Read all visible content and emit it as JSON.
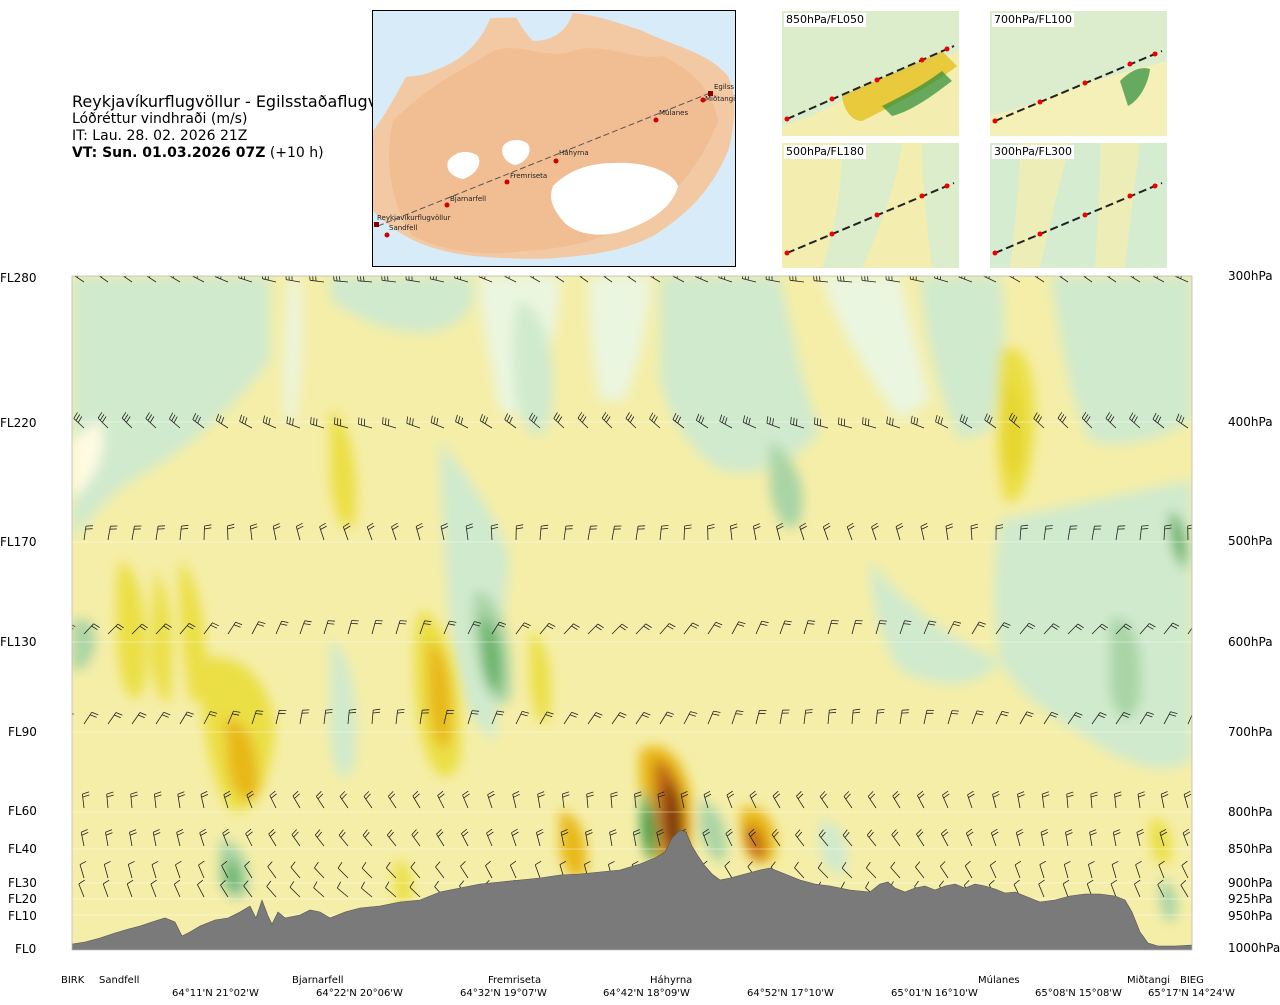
{
  "header": {
    "route": "Reykjavíkurflugvöllur - Egilsstaðaflugvöllur",
    "parameter": "Lóðréttur vindhraði (m/s)",
    "issue_time": "IT: Lau. 28. 02. 2026 21Z",
    "valid_time": "VT: Sun. 01.03.2026 07Z",
    "lead_time": "(+10 h)"
  },
  "map": {
    "points": [
      "Reykjavíkurflugvöllur",
      "Sandfell",
      "Bjarnarfell",
      "Fremriseta",
      "Háhyrna",
      "Múlanes",
      "Miðtangi",
      "Egilss"
    ]
  },
  "insets": [
    {
      "label": "850hPa/FL050"
    },
    {
      "label": "700hPa/FL100"
    },
    {
      "label": "500hPa/FL180"
    },
    {
      "label": "300hPa/FL300"
    }
  ],
  "colors": {
    "strong_up": "#7a3b0a",
    "up_3": "#c46a12",
    "up_2": "#e8b812",
    "up_1": "#ebdf45",
    "weak_up": "#f5eea8",
    "neutral": "#fefbe2",
    "weak_down": "#ebf6e0",
    "down_1": "#d0eacd",
    "down_2": "#a9d4a6",
    "down_3": "#68b368",
    "strong_down": "#1f8a2e",
    "terrain": "#7a7a7a"
  },
  "chart_data": {
    "type": "heatmap",
    "title": "",
    "y_left_ticks": [
      "FL280",
      "FL220",
      "FL170",
      "FL130",
      "FL90",
      "FL60",
      "FL40",
      "FL30",
      "FL20",
      "FL10",
      "FL0"
    ],
    "y_right_ticks": [
      "300hPa",
      "400hPa",
      "500hPa",
      "600hPa",
      "700hPa",
      "800hPa",
      "850hPa",
      "900hPa",
      "925hPa",
      "950hPa",
      "1000hPa"
    ],
    "x_waypoints": [
      "BIRK",
      "Sandfell",
      "Bjarnarfell",
      "Fremriseta",
      "Háhyrna",
      "Múlanes",
      "Miðtangi",
      "BIEG"
    ],
    "x_coordinates": [
      "64°11'N 21°02'W",
      "64°22'N 20°06'W",
      "64°32'N 19°07'W",
      "64°42'N 18°09'W",
      "64°52'N 17°10'W",
      "65°01'N 16°10'W",
      "65°08'N 15°08'W",
      "65°17'N 14°24'W"
    ],
    "field": "vertical wind speed (m/s)"
  }
}
